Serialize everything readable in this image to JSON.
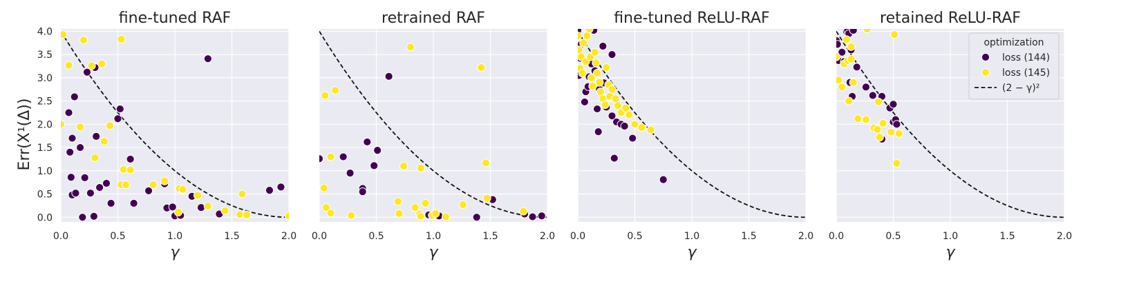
{
  "figure": {
    "ylabel": "Err(X¹(Δ))",
    "xlabel": "γ"
  },
  "legend": {
    "title": "optimization",
    "entries": [
      {
        "label": "loss (144)",
        "color": "#440154"
      },
      {
        "label": "loss (145)",
        "color": "#fde725"
      },
      {
        "label": "(2 − γ)²",
        "color": "#000000"
      }
    ]
  },
  "chart_data": [
    {
      "type": "scatter",
      "title": "fine-tuned RAF",
      "xlabel": "γ",
      "ylabel": "Err(X¹(Δ))",
      "xlim": [
        0,
        2
      ],
      "ylim": [
        -0.1,
        4.05
      ],
      "xticks": [
        "0.0",
        "0.5",
        "1.0",
        "1.5",
        "2.0"
      ],
      "yticks": [
        "0.0",
        "0.5",
        "1.0",
        "1.5",
        "2.0",
        "2.5",
        "3.0",
        "3.5",
        "4.0"
      ],
      "reference_curve": {
        "label": "(2 − γ)²",
        "expression": "(2-x)^2",
        "style": "dashed"
      },
      "series": [
        {
          "name": "loss (144)",
          "color": "#440154",
          "points": [
            [
              0.07,
              2.25
            ],
            [
              0.1,
              1.7
            ],
            [
              0.12,
              2.59
            ],
            [
              0.08,
              1.4
            ],
            [
              0.09,
              0.86
            ],
            [
              0.1,
              0.48
            ],
            [
              0.13,
              0.52
            ],
            [
              0.17,
              1.5
            ],
            [
              0.21,
              0.85
            ],
            [
              0.19,
              0.0
            ],
            [
              0.23,
              3.12
            ],
            [
              0.26,
              0.52
            ],
            [
              0.29,
              0.02
            ],
            [
              0.3,
              3.22
            ],
            [
              0.31,
              1.74
            ],
            [
              0.34,
              0.64
            ],
            [
              0.4,
              0.73
            ],
            [
              0.44,
              0.3
            ],
            [
              0.5,
              2.12
            ],
            [
              0.52,
              2.33
            ],
            [
              0.61,
              1.25
            ],
            [
              0.64,
              0.3
            ],
            [
              0.77,
              0.57
            ],
            [
              0.91,
              0.72
            ],
            [
              0.93,
              0.2
            ],
            [
              0.98,
              0.22
            ],
            [
              1.0,
              0.03
            ],
            [
              1.05,
              0.04
            ],
            [
              1.15,
              0.45
            ],
            [
              1.23,
              0.21
            ],
            [
              1.29,
              3.41
            ],
            [
              1.39,
              0.07
            ],
            [
              1.83,
              0.58
            ],
            [
              1.93,
              0.65
            ]
          ]
        },
        {
          "name": "loss (145)",
          "color": "#fde725",
          "points": [
            [
              0.02,
              3.93
            ],
            [
              0.0,
              2.0
            ],
            [
              0.07,
              3.27
            ],
            [
              0.17,
              1.94
            ],
            [
              0.2,
              3.81
            ],
            [
              0.27,
              3.26
            ],
            [
              0.3,
              1.28
            ],
            [
              0.36,
              3.3
            ],
            [
              0.38,
              1.63
            ],
            [
              0.43,
              1.97
            ],
            [
              0.53,
              3.83
            ],
            [
              0.55,
              1.03
            ],
            [
              0.53,
              0.7
            ],
            [
              0.57,
              0.7
            ],
            [
              0.61,
              1.02
            ],
            [
              0.81,
              0.7
            ],
            [
              0.91,
              0.78
            ],
            [
              1.03,
              0.11
            ],
            [
              1.04,
              0.62
            ],
            [
              1.07,
              0.6
            ],
            [
              1.2,
              0.47
            ],
            [
              1.29,
              0.24
            ],
            [
              1.44,
              0.14
            ],
            [
              1.57,
              0.06
            ],
            [
              1.59,
              0.5
            ],
            [
              1.63,
              0.05
            ],
            [
              2.0,
              0.03
            ]
          ]
        }
      ]
    },
    {
      "type": "scatter",
      "title": "retrained RAF",
      "xlabel": "γ",
      "xlim": [
        0,
        2
      ],
      "ylim": [
        -0.1,
        4.05
      ],
      "xticks": [
        "0.0",
        "0.5",
        "1.0",
        "1.5",
        "2.0"
      ],
      "reference_curve": {
        "label": "(2 − γ)²",
        "expression": "(2-x)^2",
        "style": "dashed"
      },
      "series": [
        {
          "name": "loss (144)",
          "color": "#440154",
          "points": [
            [
              0.0,
              1.26
            ],
            [
              0.21,
              1.3
            ],
            [
              0.27,
              0.95
            ],
            [
              0.38,
              0.62
            ],
            [
              0.38,
              0.55
            ],
            [
              0.42,
              1.62
            ],
            [
              0.48,
              1.11
            ],
            [
              0.51,
              1.44
            ],
            [
              0.61,
              3.03
            ],
            [
              0.96,
              0.05
            ],
            [
              1.05,
              0.03
            ],
            [
              1.38,
              0.0
            ],
            [
              1.52,
              0.38
            ],
            [
              1.8,
              0.07
            ],
            [
              1.87,
              0.01
            ],
            [
              1.95,
              0.03
            ]
          ]
        },
        {
          "name": "loss (145)",
          "color": "#fde725",
          "points": [
            [
              0.04,
              0.63
            ],
            [
              0.05,
              2.62
            ],
            [
              0.06,
              0.21
            ],
            [
              0.1,
              0.09
            ],
            [
              0.1,
              1.3
            ],
            [
              0.14,
              2.73
            ],
            [
              0.28,
              0.04
            ],
            [
              0.69,
              0.34
            ],
            [
              0.7,
              0.08
            ],
            [
              0.74,
              1.1
            ],
            [
              0.8,
              3.66
            ],
            [
              0.84,
              0.21
            ],
            [
              0.88,
              0.07
            ],
            [
              0.89,
              0.02
            ],
            [
              0.89,
              1.06
            ],
            [
              0.93,
              0.3
            ],
            [
              0.99,
              0.04
            ],
            [
              1.02,
              0.08
            ],
            [
              1.11,
              0.01
            ],
            [
              1.26,
              0.27
            ],
            [
              1.42,
              3.22
            ],
            [
              1.46,
              1.17
            ],
            [
              1.47,
              0.41
            ],
            [
              1.79,
              0.13
            ]
          ]
        }
      ]
    },
    {
      "type": "scatter",
      "title": "fine-tuned ReLU-RAF",
      "xlabel": "γ",
      "xlim": [
        0,
        2
      ],
      "ylim": [
        -0.1,
        4.05
      ],
      "xticks": [
        "0.0",
        "0.5",
        "1.0",
        "1.5",
        "2.0"
      ],
      "reference_curve": {
        "label": "(2 − γ)²",
        "expression": "(2-x)^2",
        "style": "dashed"
      },
      "series": [
        {
          "name": "loss (144)",
          "color": "#440154",
          "points": [
            [
              0.0,
              4.02
            ],
            [
              0.01,
              3.05
            ],
            [
              0.02,
              3.42
            ],
            [
              0.03,
              3.72
            ],
            [
              0.06,
              2.48
            ],
            [
              0.07,
              2.7
            ],
            [
              0.09,
              2.81
            ],
            [
              0.1,
              3.02
            ],
            [
              0.12,
              3.3
            ],
            [
              0.14,
              4.02
            ],
            [
              0.15,
              3.15
            ],
            [
              0.17,
              2.33
            ],
            [
              0.18,
              1.84
            ],
            [
              0.19,
              2.75
            ],
            [
              0.22,
              3.68
            ],
            [
              0.23,
              2.89
            ],
            [
              0.25,
              2.37
            ],
            [
              0.3,
              3.5
            ],
            [
              0.3,
              2.18
            ],
            [
              0.32,
              1.27
            ],
            [
              0.34,
              2.05
            ],
            [
              0.38,
              2.0
            ],
            [
              0.41,
              1.96
            ],
            [
              0.48,
              1.7
            ],
            [
              0.75,
              0.81
            ]
          ]
        },
        {
          "name": "loss (145)",
          "color": "#fde725",
          "points": [
            [
              0.0,
              3.9
            ],
            [
              0.01,
              3.6
            ],
            [
              0.02,
              3.2
            ],
            [
              0.03,
              3.45
            ],
            [
              0.04,
              3.1
            ],
            [
              0.05,
              3.75
            ],
            [
              0.07,
              3.35
            ],
            [
              0.08,
              3.9
            ],
            [
              0.1,
              4.05
            ],
            [
              0.11,
              3.45
            ],
            [
              0.12,
              3.0
            ],
            [
              0.13,
              2.82
            ],
            [
              0.15,
              3.55
            ],
            [
              0.16,
              3.32
            ],
            [
              0.17,
              3.1
            ],
            [
              0.19,
              2.9
            ],
            [
              0.2,
              2.7
            ],
            [
              0.22,
              2.55
            ],
            [
              0.24,
              2.42
            ],
            [
              0.25,
              3.22
            ],
            [
              0.27,
              2.85
            ],
            [
              0.28,
              2.6
            ],
            [
              0.3,
              2.75
            ],
            [
              0.33,
              2.55
            ],
            [
              0.35,
              2.4
            ],
            [
              0.38,
              2.25
            ],
            [
              0.42,
              2.35
            ],
            [
              0.45,
              2.2
            ],
            [
              0.5,
              2.0
            ],
            [
              0.56,
              1.93
            ],
            [
              0.64,
              1.88
            ]
          ]
        }
      ]
    },
    {
      "type": "scatter",
      "title": "retained ReLU-RAF",
      "xlabel": "γ",
      "xlim": [
        0,
        2
      ],
      "ylim": [
        -0.1,
        4.05
      ],
      "xticks": [
        "0.0",
        "0.5",
        "1.0",
        "1.5",
        "2.0"
      ],
      "legend_position": "top-right",
      "reference_curve": {
        "label": "(2 − γ)²",
        "expression": "(2-x)^2",
        "style": "dashed"
      },
      "series": [
        {
          "name": "loss (144)",
          "color": "#440154",
          "points": [
            [
              0.0,
              3.8
            ],
            [
              0.01,
              3.72
            ],
            [
              0.02,
              3.37
            ],
            [
              0.05,
              3.55
            ],
            [
              0.07,
              3.35
            ],
            [
              0.09,
              4.0
            ],
            [
              0.1,
              4.02
            ],
            [
              0.11,
              3.95
            ],
            [
              0.12,
              2.9
            ],
            [
              0.13,
              3.6
            ],
            [
              0.14,
              2.6
            ],
            [
              0.15,
              4.02
            ],
            [
              0.18,
              3.23
            ],
            [
              0.26,
              2.8
            ],
            [
              0.32,
              2.62
            ],
            [
              0.4,
              1.68
            ],
            [
              0.4,
              2.6
            ],
            [
              0.47,
              2.35
            ],
            [
              0.5,
              2.05
            ],
            [
              0.5,
              2.43
            ],
            [
              0.52,
              2.1
            ],
            [
              0.53,
              2.0
            ]
          ]
        },
        {
          "name": "loss (145)",
          "color": "#fde725",
          "points": [
            [
              0.0,
              3.45
            ],
            [
              0.02,
              2.95
            ],
            [
              0.05,
              2.8
            ],
            [
              0.07,
              3.3
            ],
            [
              0.09,
              3.82
            ],
            [
              0.1,
              3.37
            ],
            [
              0.11,
              2.5
            ],
            [
              0.13,
              3.4
            ],
            [
              0.15,
              2.9
            ],
            [
              0.13,
              3.67
            ],
            [
              0.19,
              2.12
            ],
            [
              0.26,
              2.1
            ],
            [
              0.27,
              4.05
            ],
            [
              0.33,
              1.92
            ],
            [
              0.36,
              1.89
            ],
            [
              0.37,
              2.48
            ],
            [
              0.38,
              1.72
            ],
            [
              0.41,
              2.02
            ],
            [
              0.48,
              1.83
            ],
            [
              0.51,
              3.93
            ],
            [
              0.53,
              1.16
            ],
            [
              0.55,
              1.8
            ]
          ]
        }
      ]
    }
  ]
}
